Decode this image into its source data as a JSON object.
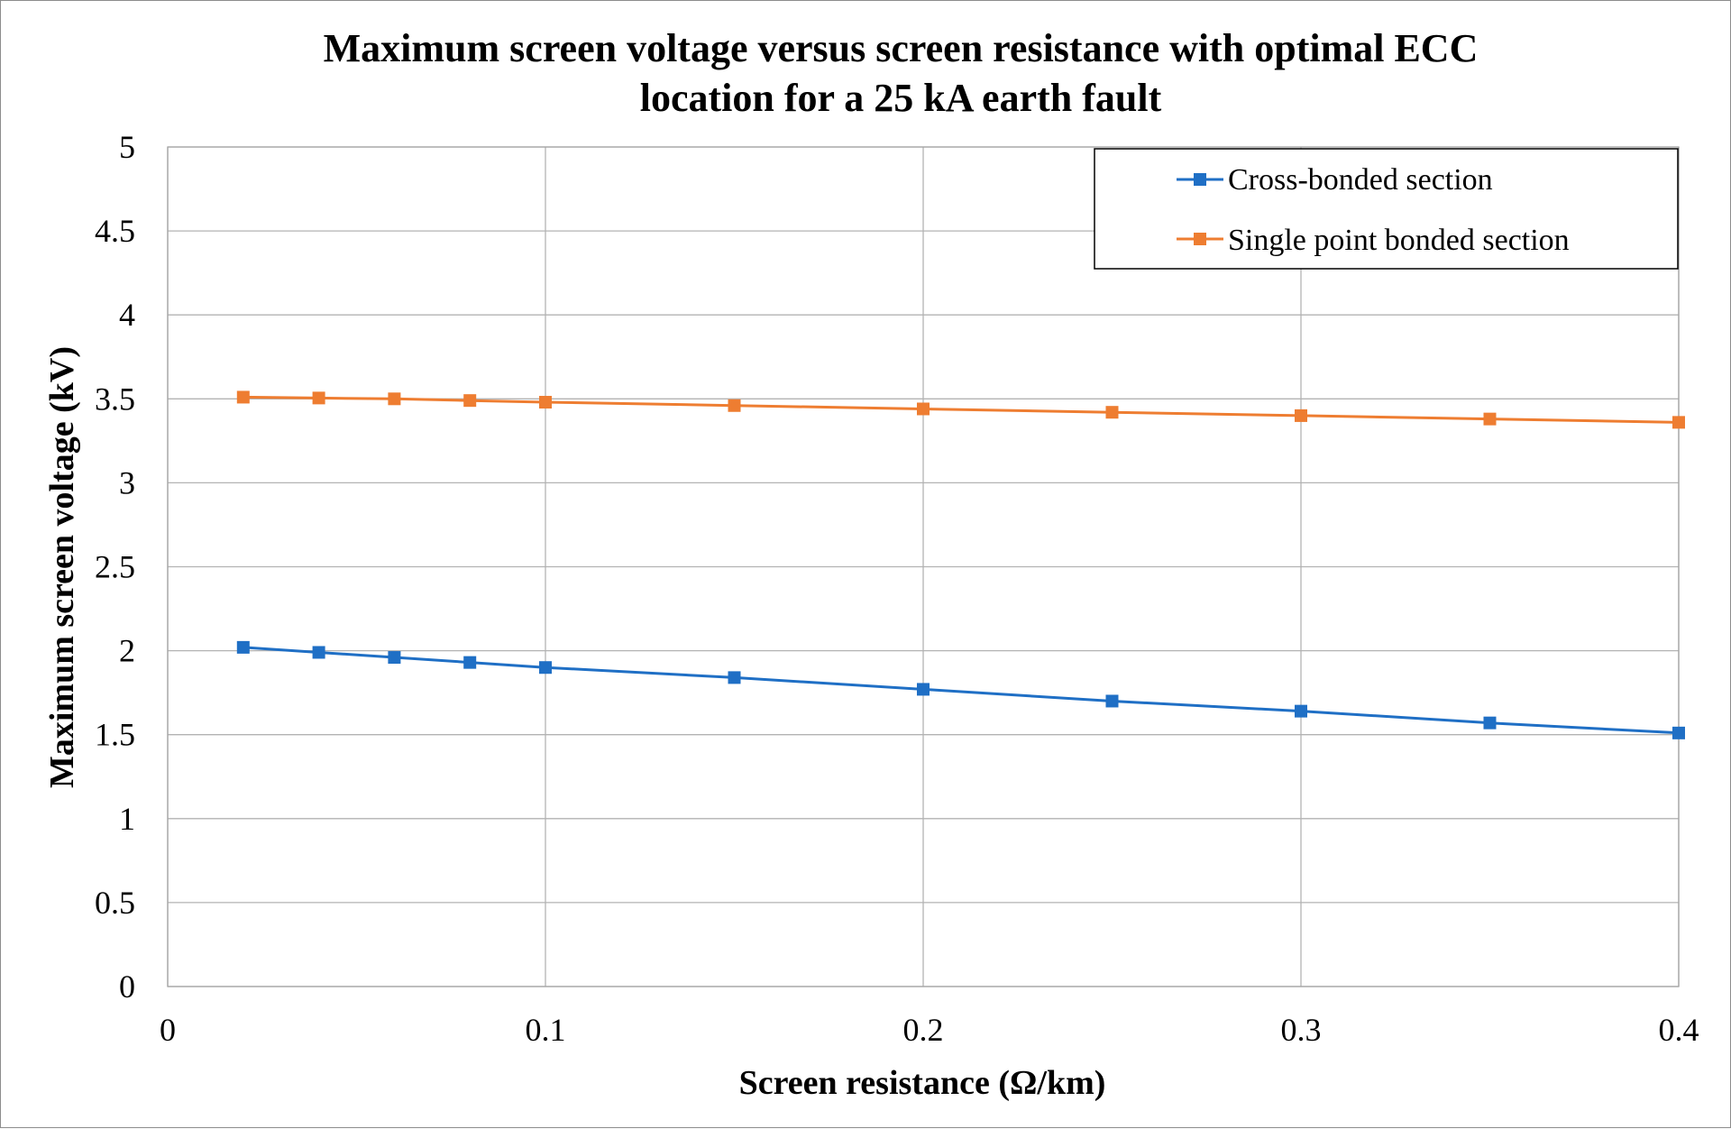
{
  "chart_data": {
    "type": "line",
    "title": [
      "Maximum screen voltage versus screen resistance with optimal ECC",
      "location for a 25 kA earth fault"
    ],
    "xlabel": "Screen resistance (Ω/km)",
    "ylabel": "Maximum screen voltage (kV)",
    "xlim": [
      0,
      0.4
    ],
    "ylim": [
      0,
      5
    ],
    "xticks": [
      0,
      0.1,
      0.2,
      0.3,
      0.4
    ],
    "xtick_labels": [
      "0",
      "0.1",
      "0.2",
      "0.3",
      "0.4"
    ],
    "yticks": [
      0,
      0.5,
      1,
      1.5,
      2,
      2.5,
      3,
      3.5,
      4,
      4.5,
      5
    ],
    "ytick_labels": [
      "0",
      "0.5",
      "1",
      "1.5",
      "2",
      "2.5",
      "3",
      "3.5",
      "4",
      "4.5",
      "5"
    ],
    "grid": true,
    "legend_position": "top-right",
    "x": [
      0.02,
      0.04,
      0.06,
      0.08,
      0.1,
      0.15,
      0.2,
      0.25,
      0.3,
      0.35,
      0.4
    ],
    "series": [
      {
        "name": "Cross-bonded section",
        "color": "#1f6fc5",
        "values": [
          2.02,
          1.99,
          1.96,
          1.93,
          1.9,
          1.84,
          1.77,
          1.7,
          1.64,
          1.57,
          1.51
        ]
      },
      {
        "name": "Single point bonded section",
        "color": "#ee7d31",
        "values": [
          3.51,
          3.505,
          3.5,
          3.49,
          3.48,
          3.46,
          3.44,
          3.42,
          3.4,
          3.38,
          3.36
        ]
      }
    ]
  }
}
